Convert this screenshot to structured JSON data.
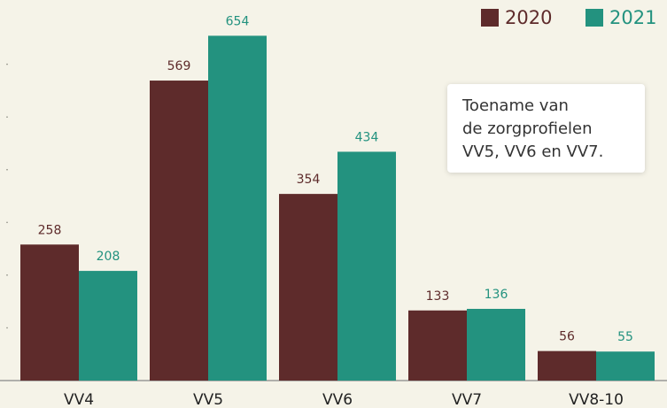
{
  "chart_data": {
    "type": "bar",
    "categories": [
      "VV4",
      "VV5",
      "VV6",
      "VV7",
      "VV8-10"
    ],
    "series": [
      {
        "name": "2020",
        "color": "#5e2b2b",
        "values": [
          258,
          569,
          354,
          133,
          56
        ]
      },
      {
        "name": "2021",
        "color": "#23927f",
        "values": [
          208,
          654,
          434,
          136,
          55
        ]
      }
    ],
    "ylim": [
      0,
      700
    ],
    "yticks": [
      100,
      200,
      300,
      400,
      500,
      600
    ],
    "legend": "top-right",
    "annotation": [
      "Toename van",
      "de zorgprofielen",
      "VV5, VV6 en VV7."
    ]
  }
}
